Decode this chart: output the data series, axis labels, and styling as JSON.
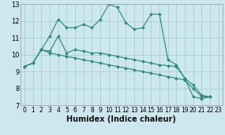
{
  "xlabel": "Humidex (Indice chaleur)",
  "bg_color": "#cce8ee",
  "grid_color": "#aacdd6",
  "line_color": "#2e8b7a",
  "xlim": [
    -0.5,
    23.5
  ],
  "ylim": [
    7,
    13
  ],
  "xticks": [
    0,
    1,
    2,
    3,
    4,
    5,
    6,
    7,
    8,
    9,
    10,
    11,
    12,
    13,
    14,
    15,
    16,
    17,
    18,
    19,
    20,
    21,
    22,
    23
  ],
  "yticks": [
    7,
    8,
    9,
    10,
    11,
    12,
    13
  ],
  "series": [
    [
      9.3,
      9.5,
      10.3,
      11.1,
      12.1,
      11.6,
      11.6,
      11.8,
      11.6,
      12.1,
      13.0,
      12.8,
      11.9,
      11.5,
      11.6,
      12.4,
      12.4,
      9.7,
      9.4,
      8.6,
      7.5,
      7.4,
      7.5
    ],
    [
      9.3,
      9.5,
      10.3,
      10.2,
      11.1,
      10.1,
      10.3,
      10.2,
      10.1,
      10.1,
      10.0,
      9.9,
      9.8,
      9.7,
      9.6,
      9.5,
      9.4,
      9.35,
      9.3,
      8.6,
      8.2,
      7.6,
      7.5
    ],
    [
      9.3,
      9.5,
      10.3,
      10.1,
      10.0,
      9.9,
      9.8,
      9.7,
      9.6,
      9.5,
      9.4,
      9.3,
      9.2,
      9.1,
      9.0,
      8.9,
      8.8,
      8.7,
      8.6,
      8.5,
      8.0,
      7.5,
      7.5
    ]
  ],
  "xlabel_fontsize": 7,
  "tick_fontsize": 5.5
}
